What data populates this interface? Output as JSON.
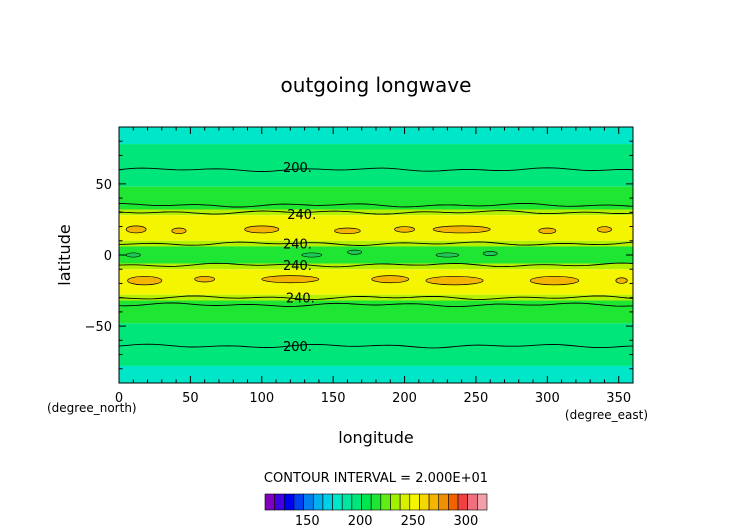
{
  "chart_data": {
    "type": "contour",
    "title": "outgoing longwave",
    "xlabel": "longitude",
    "ylabel": "latitude",
    "x_unit_label": "(degree_east)",
    "y_unit_label": "(degree_north)",
    "xlim": [
      0,
      360
    ],
    "ylim": [
      -90,
      90
    ],
    "x_ticks": [
      0,
      50,
      100,
      150,
      200,
      250,
      300,
      350
    ],
    "y_ticks": [
      -50,
      0,
      50
    ],
    "contour_interval_text": "CONTOUR INTERVAL = 2.000E+01",
    "contour_interval": 20,
    "contour_labels": [
      {
        "text": "200.",
        "lon": 125,
        "lat": 62
      },
      {
        "text": "240.",
        "lon": 128,
        "lat": 29
      },
      {
        "text": "240.",
        "lon": 125,
        "lat": 8
      },
      {
        "text": "240.",
        "lon": 125,
        "lat": -7
      },
      {
        "text": "240.",
        "lon": 127,
        "lat": -30
      },
      {
        "text": "200.",
        "lon": 125,
        "lat": -64
      }
    ],
    "bands": [
      {
        "lat_from": 90,
        "lat_to": 78,
        "value": 170,
        "color": "#00e6c8"
      },
      {
        "lat_from": 78,
        "lat_to": 48,
        "value": 200,
        "color": "#00e67a"
      },
      {
        "lat_from": 48,
        "lat_to": 32,
        "value": 220,
        "color": "#1ee632"
      },
      {
        "lat_from": 32,
        "lat_to": 28,
        "value": 230,
        "color": "#b4f000"
      },
      {
        "lat_from": 28,
        "lat_to": 10,
        "value": 250,
        "color": "#f5f500"
      },
      {
        "lat_from": 10,
        "lat_to": 6,
        "value": 230,
        "color": "#b4f000"
      },
      {
        "lat_from": 6,
        "lat_to": -6,
        "value": 220,
        "color": "#1ee632"
      },
      {
        "lat_from": -6,
        "lat_to": -10,
        "value": 230,
        "color": "#b4f000"
      },
      {
        "lat_from": -10,
        "lat_to": -28,
        "value": 250,
        "color": "#f5f500"
      },
      {
        "lat_from": -28,
        "lat_to": -32,
        "value": 230,
        "color": "#b4f000"
      },
      {
        "lat_from": -32,
        "lat_to": -48,
        "value": 220,
        "color": "#1ee632"
      },
      {
        "lat_from": -48,
        "lat_to": -78,
        "value": 200,
        "color": "#00e67a"
      },
      {
        "lat_from": -78,
        "lat_to": -90,
        "value": 170,
        "color": "#00e6c8"
      }
    ],
    "contour_lines_lat": [
      60,
      35,
      30,
      8,
      -7,
      -30,
      -35,
      -64
    ],
    "warm_patches_color": "#f5b400",
    "warm_patches": [
      {
        "lon": 12,
        "lat": 18,
        "w": 14,
        "h": 5
      },
      {
        "lon": 42,
        "lat": 17,
        "w": 10,
        "h": 4
      },
      {
        "lon": 100,
        "lat": 18,
        "w": 24,
        "h": 5
      },
      {
        "lon": 160,
        "lat": 17,
        "w": 18,
        "h": 4
      },
      {
        "lon": 200,
        "lat": 18,
        "w": 14,
        "h": 4
      },
      {
        "lon": 240,
        "lat": 18,
        "w": 40,
        "h": 5
      },
      {
        "lon": 300,
        "lat": 17,
        "w": 12,
        "h": 4
      },
      {
        "lon": 340,
        "lat": 18,
        "w": 10,
        "h": 4
      },
      {
        "lon": 18,
        "lat": -18,
        "w": 24,
        "h": 6
      },
      {
        "lon": 60,
        "lat": -17,
        "w": 14,
        "h": 4
      },
      {
        "lon": 120,
        "lat": -17,
        "w": 40,
        "h": 5
      },
      {
        "lon": 190,
        "lat": -17,
        "w": 26,
        "h": 5
      },
      {
        "lon": 235,
        "lat": -18,
        "w": 40,
        "h": 6
      },
      {
        "lon": 305,
        "lat": -18,
        "w": 34,
        "h": 6
      },
      {
        "lon": 352,
        "lat": -18,
        "w": 8,
        "h": 4
      }
    ],
    "cool_patches_color": "#20c858",
    "cool_patches": [
      {
        "lon": 135,
        "lat": 0,
        "w": 14,
        "h": 3
      },
      {
        "lon": 165,
        "lat": 2,
        "w": 10,
        "h": 3
      },
      {
        "lon": 230,
        "lat": 0,
        "w": 16,
        "h": 3
      },
      {
        "lon": 260,
        "lat": 1,
        "w": 10,
        "h": 3
      },
      {
        "lon": 10,
        "lat": 0,
        "w": 10,
        "h": 3
      }
    ],
    "colorbar": {
      "tick_labels": [
        150,
        200,
        250,
        300
      ],
      "vmin": 110,
      "vmax": 320,
      "colors": [
        "#8000c0",
        "#4000e0",
        "#0000f0",
        "#0040f0",
        "#0080f0",
        "#00b0f0",
        "#00d0e6",
        "#00e6c8",
        "#00e6a0",
        "#00e67a",
        "#00e650",
        "#1ee632",
        "#60ec14",
        "#a0f000",
        "#d8f000",
        "#f5f500",
        "#f5d800",
        "#f5b400",
        "#f09000",
        "#f06400",
        "#f04040",
        "#f07080",
        "#f0a0a8"
      ]
    }
  }
}
